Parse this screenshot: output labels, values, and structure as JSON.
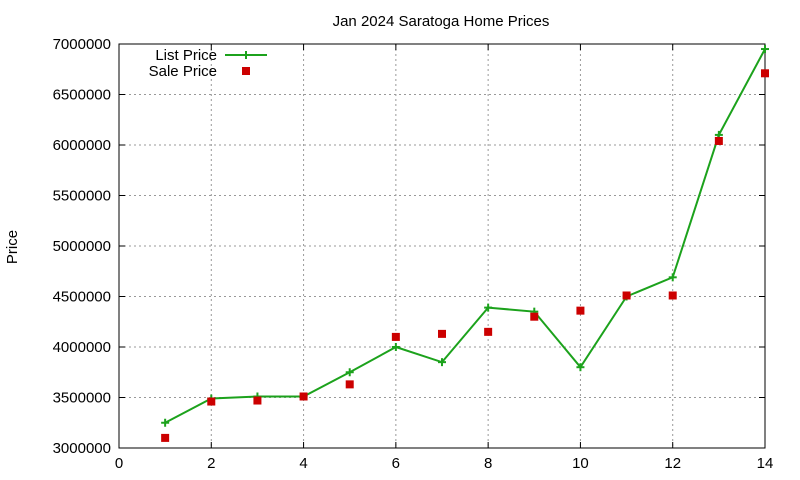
{
  "chart_data": {
    "type": "line",
    "title": "Jan 2024 Saratoga Home Prices",
    "xlabel": "",
    "ylabel": "Price",
    "xlim": [
      0,
      14
    ],
    "ylim": [
      3000000,
      7000000
    ],
    "xticks": [
      0,
      2,
      4,
      6,
      8,
      10,
      12,
      14
    ],
    "yticks": [
      3000000,
      3500000,
      4000000,
      4500000,
      5000000,
      5500000,
      6000000,
      6500000,
      7000000
    ],
    "grid": true,
    "legend_position": "top-left",
    "series": [
      {
        "name": "List Price",
        "style": "lines+points",
        "marker": "plus",
        "color": "#1ca21c",
        "x": [
          1,
          2,
          3,
          4,
          5,
          6,
          7,
          8,
          9,
          10,
          11,
          12,
          13,
          14
        ],
        "y": [
          3250000,
          3490000,
          3510000,
          3510000,
          3750000,
          4000000,
          3850000,
          4390000,
          4350000,
          3800000,
          4500000,
          4690000,
          6100000,
          6950000
        ]
      },
      {
        "name": "Sale Price",
        "style": "points",
        "marker": "square",
        "color": "#cc0000",
        "x": [
          1,
          2,
          3,
          4,
          5,
          6,
          7,
          8,
          9,
          10,
          11,
          12,
          13,
          14
        ],
        "y": [
          3100000,
          3460000,
          3470000,
          3510000,
          3630000,
          4100000,
          4130000,
          4150000,
          4300000,
          4360000,
          4510000,
          4510000,
          6040000,
          6710000
        ]
      }
    ]
  }
}
